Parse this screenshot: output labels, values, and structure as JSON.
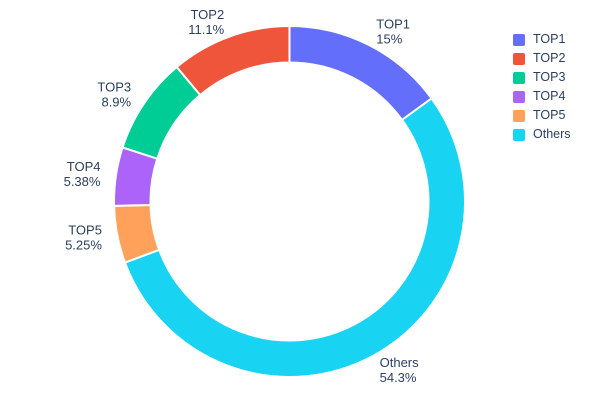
{
  "chart_data": {
    "type": "pie",
    "subtype": "donut",
    "hole": 0.79,
    "title": "",
    "labels": [
      "TOP1",
      "TOP2",
      "TOP3",
      "TOP4",
      "TOP5",
      "Others"
    ],
    "values": [
      15,
      11.1,
      8.9,
      5.38,
      5.25,
      54.3
    ],
    "percent_display": [
      "15%",
      "11.1%",
      "8.9%",
      "5.38%",
      "5.25%",
      "54.3%"
    ],
    "colors": [
      "#636efa",
      "#ef553b",
      "#00cc96",
      "#ab63fa",
      "#ffa15a",
      "#19d3f3"
    ],
    "text_color": "#2a3f5f",
    "background_color": "#ffffff",
    "legend": {
      "position": "right",
      "entries": [
        "TOP1",
        "TOP2",
        "TOP3",
        "TOP4",
        "TOP5",
        "Others"
      ]
    },
    "label_placement": "outside",
    "start_angle_deg": 0,
    "first_slice": "TOP1 clockwise from top, remaining slices counterclockwise (Others fills bottom)"
  }
}
